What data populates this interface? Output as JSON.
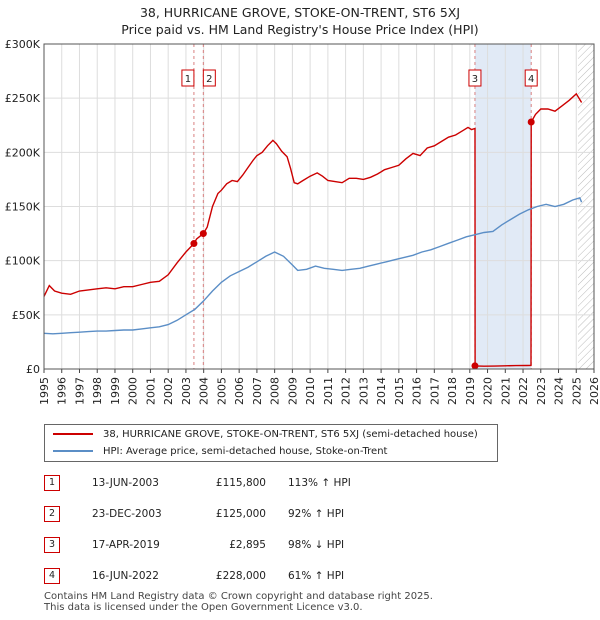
{
  "title_line1": "38, HURRICANE GROVE, STOKE-ON-TRENT, ST6 5XJ",
  "title_line2": "Price paid vs. HM Land Registry's House Price Index (HPI)",
  "colors": {
    "property": "#cc0000",
    "hpi": "#5b8ec6",
    "marker_line": "#d98080",
    "shade": "#dce6f4",
    "grid": "#dddddd"
  },
  "legend": {
    "property_label": "38, HURRICANE GROVE, STOKE-ON-TRENT, ST6 5XJ (semi-detached house)",
    "hpi_label": "HPI: Average price, semi-detached house, Stoke-on-Trent"
  },
  "transactions": [
    {
      "num": "1",
      "date": "13-JUN-2003",
      "price": "£115,800",
      "hpi": "113% ↑ HPI"
    },
    {
      "num": "2",
      "date": "23-DEC-2003",
      "price": "£125,000",
      "hpi": "92% ↑ HPI"
    },
    {
      "num": "3",
      "date": "17-APR-2019",
      "price": "£2,895",
      "hpi": "98% ↓ HPI"
    },
    {
      "num": "4",
      "date": "16-JUN-2022",
      "price": "£228,000",
      "hpi": "61% ↑ HPI"
    }
  ],
  "footer": {
    "line1": "Contains HM Land Registry data © Crown copyright and database right 2025.",
    "line2": "This data is licensed under the Open Government Licence v3.0."
  },
  "chart_data": {
    "type": "line",
    "title": "38, HURRICANE GROVE, STOKE-ON-TRENT, ST6 5XJ — Price paid vs. HM Land Registry's House Price Index (HPI)",
    "xlabel": "",
    "ylabel": "",
    "xlim": [
      1995,
      2026
    ],
    "ylim": [
      0,
      300000
    ],
    "x_ticks": [
      1995,
      1996,
      1997,
      1998,
      1999,
      2000,
      2001,
      2002,
      2003,
      2004,
      2005,
      2006,
      2007,
      2008,
      2009,
      2010,
      2011,
      2012,
      2013,
      2014,
      2015,
      2016,
      2017,
      2018,
      2019,
      2020,
      2021,
      2022,
      2023,
      2024,
      2025,
      2026
    ],
    "y_ticks": [
      {
        "value": 0,
        "label": "£0"
      },
      {
        "value": 50000,
        "label": "£50K"
      },
      {
        "value": 100000,
        "label": "£100K"
      },
      {
        "value": 150000,
        "label": "£150K"
      },
      {
        "value": 200000,
        "label": "£200K"
      },
      {
        "value": 250000,
        "label": "£250K"
      },
      {
        "value": 300000,
        "label": "£300K"
      }
    ],
    "grid": true,
    "future_shade_from": 2025.1,
    "series": [
      {
        "name": "38, HURRICANE GROVE, STOKE-ON-TRENT, ST6 5XJ (semi-detached house)",
        "color": "#cc0000",
        "points": [
          [
            1995.0,
            67000
          ],
          [
            1995.3,
            77000
          ],
          [
            1995.6,
            72000
          ],
          [
            1996.0,
            70000
          ],
          [
            1996.5,
            69000
          ],
          [
            1997.0,
            72000
          ],
          [
            1997.5,
            73000
          ],
          [
            1998.0,
            74000
          ],
          [
            1998.5,
            75000
          ],
          [
            1999.0,
            74000
          ],
          [
            1999.5,
            76000
          ],
          [
            2000.0,
            76000
          ],
          [
            2000.5,
            78000
          ],
          [
            2001.0,
            80000
          ],
          [
            2001.5,
            81000
          ],
          [
            2002.0,
            87000
          ],
          [
            2002.5,
            98000
          ],
          [
            2003.0,
            108000
          ],
          [
            2003.45,
            115800
          ],
          [
            2003.6,
            120000
          ],
          [
            2003.98,
            125000
          ],
          [
            2004.2,
            131000
          ],
          [
            2004.5,
            150000
          ],
          [
            2004.8,
            162000
          ],
          [
            2005.0,
            165000
          ],
          [
            2005.3,
            171000
          ],
          [
            2005.6,
            174000
          ],
          [
            2005.9,
            173000
          ],
          [
            2006.2,
            179000
          ],
          [
            2006.5,
            186000
          ],
          [
            2006.8,
            193000
          ],
          [
            2007.0,
            197000
          ],
          [
            2007.3,
            200000
          ],
          [
            2007.6,
            206000
          ],
          [
            2007.9,
            211000
          ],
          [
            2008.1,
            208000
          ],
          [
            2008.4,
            201000
          ],
          [
            2008.7,
            196000
          ],
          [
            2008.9,
            185000
          ],
          [
            2009.1,
            172000
          ],
          [
            2009.3,
            171000
          ],
          [
            2009.6,
            174000
          ],
          [
            2010.0,
            178000
          ],
          [
            2010.4,
            181000
          ],
          [
            2010.7,
            178000
          ],
          [
            2011.0,
            174000
          ],
          [
            2011.4,
            173000
          ],
          [
            2011.8,
            172000
          ],
          [
            2012.2,
            176000
          ],
          [
            2012.6,
            176000
          ],
          [
            2013.0,
            175000
          ],
          [
            2013.4,
            177000
          ],
          [
            2013.8,
            180000
          ],
          [
            2014.2,
            184000
          ],
          [
            2014.6,
            186000
          ],
          [
            2015.0,
            188000
          ],
          [
            2015.4,
            194000
          ],
          [
            2015.8,
            199000
          ],
          [
            2016.2,
            197000
          ],
          [
            2016.6,
            204000
          ],
          [
            2017.0,
            206000
          ],
          [
            2017.4,
            210000
          ],
          [
            2017.8,
            214000
          ],
          [
            2018.2,
            216000
          ],
          [
            2018.6,
            220000
          ],
          [
            2018.9,
            223000
          ],
          [
            2019.1,
            221000
          ],
          [
            2019.29,
            222000
          ],
          [
            2019.3,
            2895
          ],
          [
            2019.8,
            2600
          ],
          [
            2020.4,
            2700
          ],
          [
            2021.0,
            3000
          ],
          [
            2021.6,
            3100
          ],
          [
            2022.2,
            3200
          ],
          [
            2022.45,
            3300
          ],
          [
            2022.46,
            228000
          ],
          [
            2022.7,
            235000
          ],
          [
            2023.0,
            240000
          ],
          [
            2023.4,
            240000
          ],
          [
            2023.8,
            238000
          ],
          [
            2024.2,
            243000
          ],
          [
            2024.6,
            248000
          ],
          [
            2025.0,
            254000
          ],
          [
            2025.3,
            246000
          ]
        ]
      },
      {
        "name": "HPI: Average price, semi-detached house, Stoke-on-Trent",
        "color": "#5b8ec6",
        "points": [
          [
            1995.0,
            33000
          ],
          [
            1995.5,
            32500
          ],
          [
            1996.0,
            33000
          ],
          [
            1996.5,
            33500
          ],
          [
            1997.0,
            34000
          ],
          [
            1997.5,
            34500
          ],
          [
            1998.0,
            35000
          ],
          [
            1998.5,
            35000
          ],
          [
            1999.0,
            35500
          ],
          [
            1999.5,
            36000
          ],
          [
            2000.0,
            36000
          ],
          [
            2000.5,
            37000
          ],
          [
            2001.0,
            38000
          ],
          [
            2001.5,
            39000
          ],
          [
            2002.0,
            41000
          ],
          [
            2002.5,
            45000
          ],
          [
            2003.0,
            50000
          ],
          [
            2003.5,
            55000
          ],
          [
            2004.0,
            63000
          ],
          [
            2004.5,
            72000
          ],
          [
            2005.0,
            80000
          ],
          [
            2005.5,
            86000
          ],
          [
            2006.0,
            90000
          ],
          [
            2006.5,
            94000
          ],
          [
            2007.0,
            99000
          ],
          [
            2007.5,
            104000
          ],
          [
            2008.0,
            108000
          ],
          [
            2008.5,
            104000
          ],
          [
            2009.0,
            96000
          ],
          [
            2009.3,
            91000
          ],
          [
            2009.8,
            92000
          ],
          [
            2010.3,
            95000
          ],
          [
            2010.8,
            93000
          ],
          [
            2011.3,
            92000
          ],
          [
            2011.8,
            91000
          ],
          [
            2012.3,
            92000
          ],
          [
            2012.8,
            93000
          ],
          [
            2013.3,
            95000
          ],
          [
            2013.8,
            97000
          ],
          [
            2014.3,
            99000
          ],
          [
            2014.8,
            101000
          ],
          [
            2015.3,
            103000
          ],
          [
            2015.8,
            105000
          ],
          [
            2016.3,
            108000
          ],
          [
            2016.8,
            110000
          ],
          [
            2017.3,
            113000
          ],
          [
            2017.8,
            116000
          ],
          [
            2018.3,
            119000
          ],
          [
            2018.8,
            122000
          ],
          [
            2019.3,
            124000
          ],
          [
            2019.8,
            126000
          ],
          [
            2020.3,
            127000
          ],
          [
            2020.8,
            133000
          ],
          [
            2021.3,
            138000
          ],
          [
            2021.8,
            143000
          ],
          [
            2022.3,
            147000
          ],
          [
            2022.8,
            150000
          ],
          [
            2023.3,
            152000
          ],
          [
            2023.8,
            150000
          ],
          [
            2024.3,
            152000
          ],
          [
            2024.8,
            156000
          ],
          [
            2025.2,
            158000
          ],
          [
            2025.3,
            154000
          ]
        ]
      }
    ],
    "markers": [
      {
        "label": "1",
        "x": 2003.45,
        "y": 115800
      },
      {
        "label": "2",
        "x": 2003.98,
        "y": 125000
      },
      {
        "label": "3",
        "x": 2019.29,
        "y": 2895
      },
      {
        "label": "4",
        "x": 2022.46,
        "y": 228000
      }
    ]
  }
}
